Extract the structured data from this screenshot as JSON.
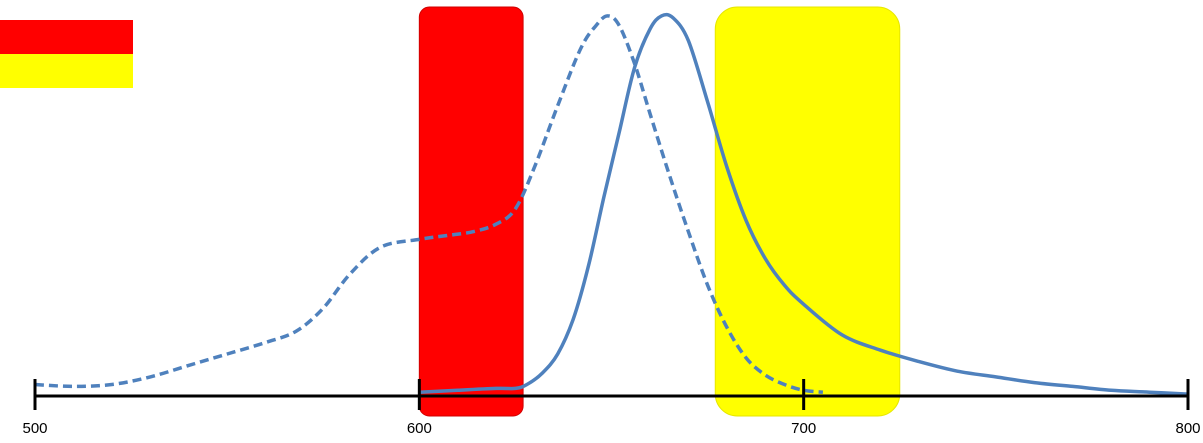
{
  "chart_data": {
    "type": "line",
    "title": "",
    "xlabel": "",
    "ylabel": "",
    "x_ticks": [
      "500",
      "600",
      "700",
      "800"
    ],
    "xlim": [
      500,
      800
    ],
    "ylim": [
      0,
      1
    ],
    "grid": false,
    "legend": "top-left",
    "legend_swatches": [
      {
        "color": "#ff0000"
      },
      {
        "color": "#ffff00"
      }
    ],
    "bands": [
      {
        "color": "#ff0000",
        "x_start": 600,
        "x_end": 627
      },
      {
        "color": "#ffff00",
        "x_start": 677,
        "x_end": 725
      }
    ],
    "series": [
      {
        "style": "dashed",
        "color": "#4f81bd",
        "points": [
          [
            500,
            0.03
          ],
          [
            510,
            0.025
          ],
          [
            520,
            0.03
          ],
          [
            530,
            0.05
          ],
          [
            540,
            0.08
          ],
          [
            550,
            0.11
          ],
          [
            560,
            0.14
          ],
          [
            568,
            0.17
          ],
          [
            575,
            0.23
          ],
          [
            582,
            0.32
          ],
          [
            590,
            0.39
          ],
          [
            600,
            0.41
          ],
          [
            607,
            0.42
          ],
          [
            614,
            0.43
          ],
          [
            620,
            0.45
          ],
          [
            625,
            0.49
          ],
          [
            630,
            0.6
          ],
          [
            636,
            0.76
          ],
          [
            642,
            0.91
          ],
          [
            646,
            0.97
          ],
          [
            649,
            0.995
          ],
          [
            652,
            0.97
          ],
          [
            656,
            0.87
          ],
          [
            660,
            0.74
          ],
          [
            665,
            0.58
          ],
          [
            670,
            0.43
          ],
          [
            675,
            0.29
          ],
          [
            680,
            0.18
          ],
          [
            685,
            0.1
          ],
          [
            690,
            0.055
          ],
          [
            695,
            0.03
          ],
          [
            700,
            0.015
          ],
          [
            705,
            0.01
          ]
        ]
      },
      {
        "style": "solid",
        "color": "#4f81bd",
        "points": [
          [
            600,
            0.01
          ],
          [
            610,
            0.015
          ],
          [
            620,
            0.02
          ],
          [
            625,
            0.02
          ],
          [
            628,
            0.03
          ],
          [
            632,
            0.06
          ],
          [
            636,
            0.11
          ],
          [
            640,
            0.2
          ],
          [
            644,
            0.34
          ],
          [
            648,
            0.52
          ],
          [
            652,
            0.69
          ],
          [
            656,
            0.86
          ],
          [
            660,
            0.96
          ],
          [
            663,
            0.995
          ],
          [
            666,
            0.99
          ],
          [
            670,
            0.93
          ],
          [
            675,
            0.77
          ],
          [
            680,
            0.6
          ],
          [
            685,
            0.46
          ],
          [
            690,
            0.36
          ],
          [
            695,
            0.29
          ],
          [
            700,
            0.24
          ],
          [
            710,
            0.16
          ],
          [
            720,
            0.12
          ],
          [
            730,
            0.09
          ],
          [
            740,
            0.065
          ],
          [
            750,
            0.05
          ],
          [
            760,
            0.035
          ],
          [
            770,
            0.025
          ],
          [
            780,
            0.015
          ],
          [
            790,
            0.01
          ],
          [
            800,
            0.005
          ]
        ]
      }
    ]
  }
}
